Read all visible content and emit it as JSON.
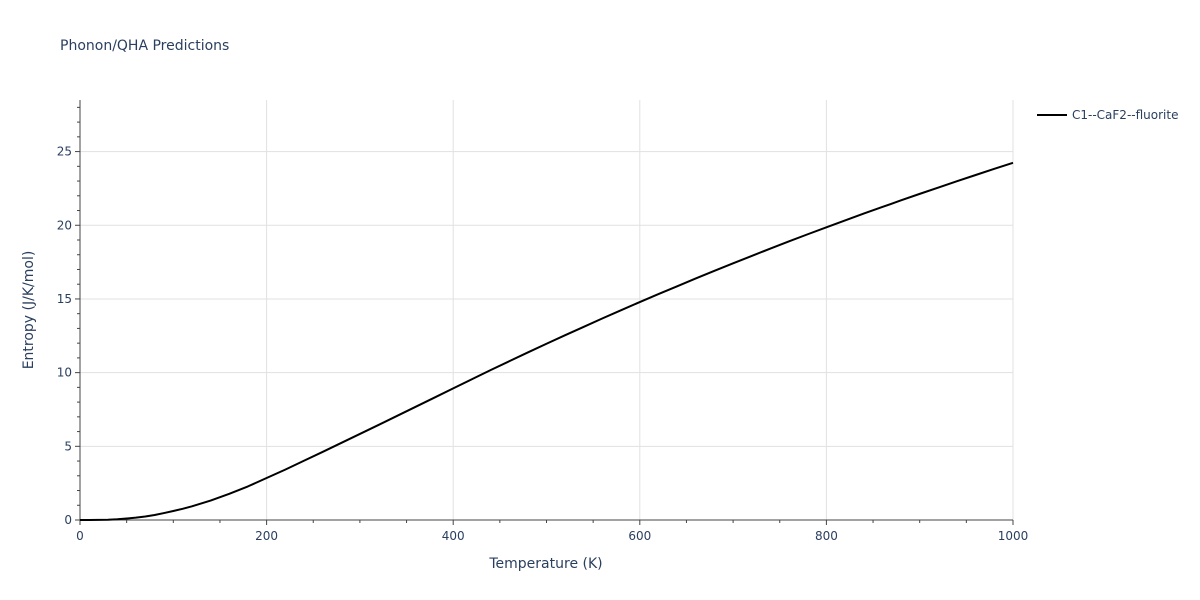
{
  "chart_data": {
    "type": "line",
    "title": "Phonon/QHA Predictions",
    "xlabel": "Temperature (K)",
    "ylabel": "Entropy (J/K/mol)",
    "xlim": [
      0,
      1000
    ],
    "ylim": [
      0,
      28.5
    ],
    "x_ticks": [
      0,
      200,
      400,
      600,
      800,
      1000
    ],
    "y_ticks": [
      0,
      5,
      10,
      15,
      20,
      25
    ],
    "x_tick_labels": [
      "0",
      "200",
      "400",
      "600",
      "800",
      "1000"
    ],
    "y_tick_labels": [
      "0",
      "5",
      "10",
      "15",
      "20",
      "25"
    ],
    "grid": true,
    "legend_position": "top-right-outside",
    "series": [
      {
        "name": "C1--CaF2--fluorite",
        "color": "#000000",
        "x": [
          0,
          10,
          20,
          30,
          40,
          50,
          60,
          70,
          80,
          90,
          100,
          110,
          120,
          140,
          160,
          180,
          200,
          220,
          240,
          260,
          280,
          300,
          320,
          340,
          360,
          380,
          400,
          420,
          440,
          460,
          480,
          500,
          520,
          540,
          560,
          580,
          600,
          620,
          640,
          660,
          680,
          700,
          720,
          740,
          760,
          780,
          800,
          820,
          840,
          860,
          880,
          900,
          920,
          940,
          960,
          980,
          1000
        ],
        "y": [
          0,
          0.0,
          0.01,
          0.02,
          0.05,
          0.1,
          0.16,
          0.24,
          0.34,
          0.47,
          0.61,
          0.76,
          0.93,
          1.32,
          1.78,
          2.28,
          2.85,
          3.42,
          4.02,
          4.62,
          5.23,
          5.84,
          6.45,
          7.07,
          7.69,
          8.31,
          8.93,
          9.55,
          10.17,
          10.77,
          11.37,
          11.96,
          12.54,
          13.11,
          13.68,
          14.24,
          14.79,
          15.33,
          15.86,
          16.39,
          16.91,
          17.42,
          17.92,
          18.42,
          18.91,
          19.39,
          19.86,
          20.33,
          20.79,
          21.24,
          21.69,
          22.13,
          22.56,
          22.99,
          23.41,
          23.83,
          24.24
        ]
      }
    ]
  }
}
